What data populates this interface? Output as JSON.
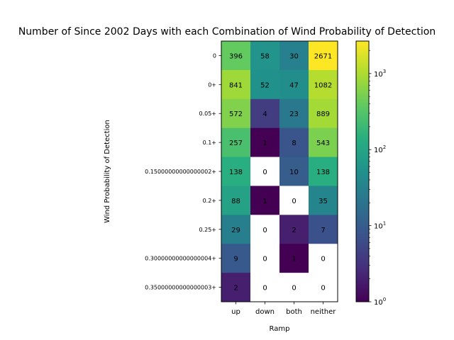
{
  "chart_data": {
    "type": "heatmap",
    "title": "Number of Since 2002 Days with each Combination of Wind Probability of Detection",
    "xlabel": "Ramp",
    "ylabel": "Wind Probability of Detection",
    "x_categories": [
      "up",
      "down",
      "both",
      "neither"
    ],
    "y_categories": [
      "0",
      "0+",
      "0.05+",
      "0.1+",
      "0.15000000000000002+",
      "0.2+",
      "0.25+",
      "0.30000000000000004+",
      "0.35000000000000003+"
    ],
    "values": [
      [
        396,
        58,
        30,
        2671
      ],
      [
        841,
        52,
        47,
        1082
      ],
      [
        572,
        4,
        23,
        889
      ],
      [
        257,
        1,
        8,
        543
      ],
      [
        138,
        0,
        10,
        138
      ],
      [
        88,
        1,
        0,
        35
      ],
      [
        29,
        0,
        2,
        7
      ],
      [
        9,
        0,
        1,
        0
      ],
      [
        2,
        0,
        0,
        0
      ]
    ],
    "colormap": "viridis",
    "color_scale": "log",
    "color_range": [
      1,
      2671
    ],
    "colorbar_ticks": [
      {
        "value": 1,
        "base": "10",
        "exp": "0"
      },
      {
        "value": 10,
        "base": "10",
        "exp": "1"
      },
      {
        "value": 100,
        "base": "10",
        "exp": "2"
      },
      {
        "value": 1000,
        "base": "10",
        "exp": "3"
      }
    ],
    "zero_color": "#ffffff"
  }
}
